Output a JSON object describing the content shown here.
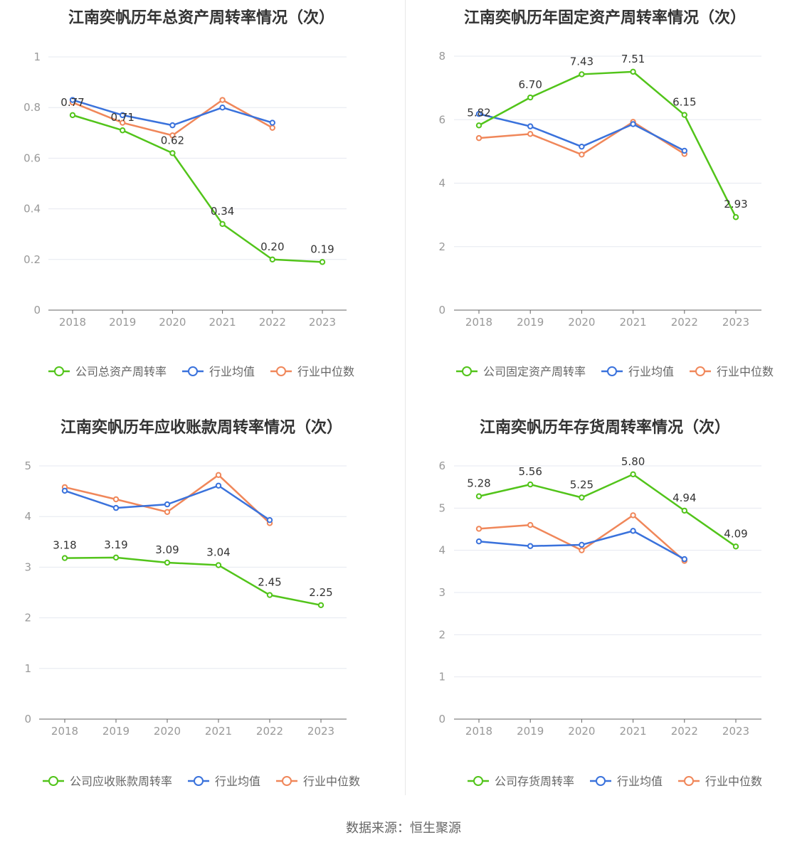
{
  "source_text": "数据来源：恒生聚源",
  "colors": {
    "company": "#52c41a",
    "average": "#3a72dc",
    "median": "#f0875a",
    "grid": "#e6e8f0",
    "axis": "#666666"
  },
  "legend_common": {
    "average": "行业均值",
    "median": "行业中位数"
  },
  "chart_data": [
    {
      "type": "line",
      "title": "江南奕帆历年总资产周转率情况（次）",
      "categories": [
        "2018",
        "2019",
        "2020",
        "2021",
        "2022",
        "2023"
      ],
      "ylim": [
        0,
        1
      ],
      "yticks": [
        "0",
        "0.2",
        "0.4",
        "0.6",
        "0.8",
        "1"
      ],
      "ytick_values": [
        0,
        0.2,
        0.4,
        0.6,
        0.8,
        1
      ],
      "series": [
        {
          "name": "公司总资产周转率",
          "role": "company",
          "values": [
            0.77,
            0.71,
            0.62,
            0.34,
            0.2,
            0.19
          ],
          "labels": [
            "0.77",
            "0.71",
            "0.62",
            "0.34",
            "0.20",
            "0.19"
          ]
        },
        {
          "name": "行业均值",
          "role": "average",
          "values": [
            0.83,
            0.77,
            0.73,
            0.8,
            0.74,
            null
          ]
        },
        {
          "name": "行业中位数",
          "role": "median",
          "values": [
            0.82,
            0.74,
            0.69,
            0.83,
            0.72,
            null
          ]
        }
      ],
      "grid": true,
      "legend": "bottom"
    },
    {
      "type": "line",
      "title": "江南奕帆历年固定资产周转率情况（次）",
      "categories": [
        "2018",
        "2019",
        "2020",
        "2021",
        "2022",
        "2023"
      ],
      "ylim": [
        0,
        8
      ],
      "yticks": [
        "0",
        "2",
        "4",
        "6",
        "8"
      ],
      "ytick_values": [
        0,
        2,
        4,
        6,
        8
      ],
      "series": [
        {
          "name": "公司固定资产周转率",
          "role": "company",
          "values": [
            5.82,
            6.7,
            7.43,
            7.51,
            6.15,
            2.93
          ],
          "labels": [
            "5.82",
            "6.70",
            "7.43",
            "7.51",
            "6.15",
            "2.93"
          ]
        },
        {
          "name": "行业均值",
          "role": "average",
          "values": [
            6.18,
            5.79,
            5.15,
            5.86,
            5.02,
            null
          ]
        },
        {
          "name": "行业中位数",
          "role": "median",
          "values": [
            5.42,
            5.55,
            4.9,
            5.93,
            4.92,
            null
          ]
        }
      ],
      "grid": true,
      "legend": "bottom"
    },
    {
      "type": "line",
      "title": "江南奕帆历年应收账款周转率情况（次）",
      "categories": [
        "2018",
        "2019",
        "2020",
        "2021",
        "2022",
        "2023"
      ],
      "ylim": [
        0,
        5
      ],
      "yticks": [
        "0",
        "1",
        "2",
        "3",
        "4",
        "5"
      ],
      "ytick_values": [
        0,
        1,
        2,
        3,
        4,
        5
      ],
      "series": [
        {
          "name": "公司应收账款周转率",
          "role": "company",
          "values": [
            3.18,
            3.19,
            3.09,
            3.04,
            2.45,
            2.25
          ],
          "labels": [
            "3.18",
            "3.19",
            "3.09",
            "3.04",
            "2.45",
            "2.25"
          ]
        },
        {
          "name": "行业均值",
          "role": "average",
          "values": [
            4.51,
            4.17,
            4.24,
            4.61,
            3.93,
            null
          ]
        },
        {
          "name": "行业中位数",
          "role": "median",
          "values": [
            4.58,
            4.34,
            4.09,
            4.82,
            3.87,
            null
          ]
        }
      ],
      "grid": true,
      "legend": "bottom"
    },
    {
      "type": "line",
      "title": "江南奕帆历年存货周转率情况（次）",
      "categories": [
        "2018",
        "2019",
        "2020",
        "2021",
        "2022",
        "2023"
      ],
      "ylim": [
        0,
        6
      ],
      "yticks": [
        "0",
        "1",
        "2",
        "3",
        "4",
        "5",
        "6"
      ],
      "ytick_values": [
        0,
        1,
        2,
        3,
        4,
        5,
        6
      ],
      "series": [
        {
          "name": "公司存货周转率",
          "role": "company",
          "values": [
            5.28,
            5.56,
            5.25,
            5.8,
            4.94,
            4.09
          ],
          "labels": [
            "5.28",
            "5.56",
            "5.25",
            "5.80",
            "4.94",
            "4.09"
          ]
        },
        {
          "name": "行业均值",
          "role": "average",
          "values": [
            4.21,
            4.1,
            4.13,
            4.46,
            3.79,
            null
          ]
        },
        {
          "name": "行业中位数",
          "role": "median",
          "values": [
            4.51,
            4.6,
            4.0,
            4.83,
            3.75,
            null
          ]
        }
      ],
      "grid": true,
      "legend": "bottom"
    }
  ]
}
